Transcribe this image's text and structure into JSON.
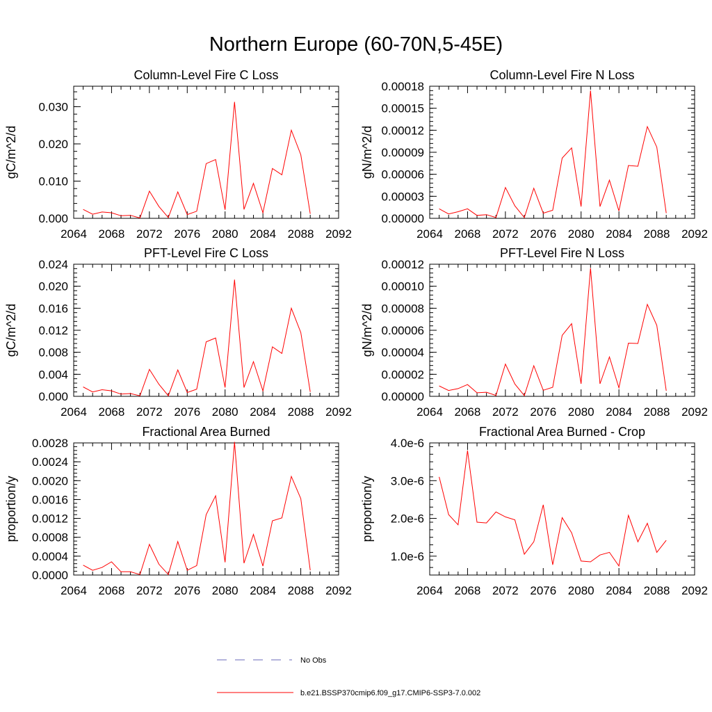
{
  "figure": {
    "title": "Northern Europe (60-70N,5-45E)"
  },
  "legend": {
    "entries": [
      {
        "label": "No Obs",
        "color": "#6a6ab8",
        "style": "dashed"
      },
      {
        "label": "b.e21.BSSP370cmip6.f09_g17.CMIP6-SSP3-7.0.002",
        "color": "#ff0000",
        "style": "solid"
      }
    ]
  },
  "chart_data": [
    {
      "type": "line",
      "title": "Column-Level Fire C Loss",
      "ylabel": "gC/m^2/d",
      "xlim": [
        2064,
        2092
      ],
      "ylim": [
        0,
        0.0355
      ],
      "x_ticks": [
        "2064",
        "2068",
        "2072",
        "2076",
        "2080",
        "2084",
        "2088",
        "2092"
      ],
      "y_ticks": [
        {
          "value": 0.0,
          "label": "0.000"
        },
        {
          "value": 0.01,
          "label": "0.010"
        },
        {
          "value": 0.02,
          "label": "0.020"
        },
        {
          "value": 0.03,
          "label": "0.030"
        }
      ],
      "series": [
        {
          "color": "#ff0000",
          "x": [
            2065,
            2066,
            2067,
            2068,
            2069,
            2070,
            2071,
            2072,
            2073,
            2074,
            2075,
            2076,
            2077,
            2078,
            2079,
            2080,
            2081,
            2082,
            2083,
            2084,
            2085,
            2086,
            2087,
            2088,
            2089
          ],
          "y": [
            0.0024,
            0.0011,
            0.0017,
            0.0015,
            0.0007,
            0.0008,
            0.0001,
            0.0073,
            0.0032,
            0.0002,
            0.0071,
            0.001,
            0.0019,
            0.0147,
            0.0158,
            0.0023,
            0.0313,
            0.0024,
            0.0094,
            0.0015,
            0.0134,
            0.0117,
            0.0237,
            0.0171,
            0.0012
          ]
        }
      ]
    },
    {
      "type": "line",
      "title": "Column-Level Fire N Loss",
      "ylabel": "gN/m^2/d",
      "xlim": [
        2064,
        2092
      ],
      "ylim": [
        0,
        0.00018
      ],
      "x_ticks": [
        "2064",
        "2068",
        "2072",
        "2076",
        "2080",
        "2084",
        "2088",
        "2092"
      ],
      "y_ticks": [
        {
          "value": 0.0,
          "label": "0.00000"
        },
        {
          "value": 3e-05,
          "label": "0.00003"
        },
        {
          "value": 6e-05,
          "label": "0.00006"
        },
        {
          "value": 9e-05,
          "label": "0.00009"
        },
        {
          "value": 0.00012,
          "label": "0.00012"
        },
        {
          "value": 0.00015,
          "label": "0.00015"
        },
        {
          "value": 0.00018,
          "label": "0.00018"
        }
      ],
      "series": [
        {
          "color": "#ff0000",
          "x": [
            2065,
            2066,
            2067,
            2068,
            2069,
            2070,
            2071,
            2072,
            2073,
            2074,
            2075,
            2076,
            2077,
            2078,
            2079,
            2080,
            2081,
            2082,
            2083,
            2084,
            2085,
            2086,
            2087,
            2088,
            2089
          ],
          "y": [
            1.3e-05,
            6e-06,
            9e-06,
            1.3e-05,
            4e-06,
            5e-06,
            1e-06,
            4.2e-05,
            1.7e-05,
            1e-06,
            4.1e-05,
            7e-06,
            1.1e-05,
            8.2e-05,
            9.6e-05,
            1.6e-05,
            0.000174,
            1.6e-05,
            5.2e-05,
            1e-05,
            7.2e-05,
            7.1e-05,
            0.000125,
            9.7e-05,
            7e-06
          ]
        }
      ]
    },
    {
      "type": "line",
      "title": "PFT-Level Fire C Loss",
      "ylabel": "gC/m^2/d",
      "xlim": [
        2064,
        2092
      ],
      "ylim": [
        0,
        0.024
      ],
      "x_ticks": [
        "2064",
        "2068",
        "2072",
        "2076",
        "2080",
        "2084",
        "2088",
        "2092"
      ],
      "y_ticks": [
        {
          "value": 0.0,
          "label": "0.000"
        },
        {
          "value": 0.004,
          "label": "0.004"
        },
        {
          "value": 0.008,
          "label": "0.008"
        },
        {
          "value": 0.012,
          "label": "0.012"
        },
        {
          "value": 0.016,
          "label": "0.016"
        },
        {
          "value": 0.02,
          "label": "0.020"
        },
        {
          "value": 0.024,
          "label": "0.024"
        }
      ],
      "series": [
        {
          "color": "#ff0000",
          "x": [
            2065,
            2066,
            2067,
            2068,
            2069,
            2070,
            2071,
            2072,
            2073,
            2074,
            2075,
            2076,
            2077,
            2078,
            2079,
            2080,
            2081,
            2082,
            2083,
            2084,
            2085,
            2086,
            2087,
            2088,
            2089
          ],
          "y": [
            0.0017,
            0.0008,
            0.0012,
            0.001,
            0.0004,
            0.0005,
            0.0001,
            0.0049,
            0.0022,
            0.0001,
            0.0048,
            0.0007,
            0.0013,
            0.0099,
            0.0106,
            0.0016,
            0.0212,
            0.0016,
            0.0063,
            0.001,
            0.009,
            0.0078,
            0.016,
            0.0116,
            0.0008
          ]
        }
      ]
    },
    {
      "type": "line",
      "title": "PFT-Level Fire N Loss",
      "ylabel": "gN/m^2/d",
      "xlim": [
        2064,
        2092
      ],
      "ylim": [
        0,
        0.00012
      ],
      "x_ticks": [
        "2064",
        "2068",
        "2072",
        "2076",
        "2080",
        "2084",
        "2088",
        "2092"
      ],
      "y_ticks": [
        {
          "value": 0.0,
          "label": "0.00000"
        },
        {
          "value": 2e-05,
          "label": "0.00002"
        },
        {
          "value": 4e-05,
          "label": "0.00004"
        },
        {
          "value": 6e-05,
          "label": "0.00006"
        },
        {
          "value": 8e-05,
          "label": "0.00008"
        },
        {
          "value": 0.0001,
          "label": "0.00010"
        },
        {
          "value": 0.00012,
          "label": "0.00012"
        }
      ],
      "series": [
        {
          "color": "#ff0000",
          "x": [
            2065,
            2066,
            2067,
            2068,
            2069,
            2070,
            2071,
            2072,
            2073,
            2074,
            2075,
            2076,
            2077,
            2078,
            2079,
            2080,
            2081,
            2082,
            2083,
            2084,
            2085,
            2086,
            2087,
            2088,
            2089
          ],
          "y": [
            9.5e-06,
            5.3e-06,
            7e-06,
            1.07e-05,
            3.2e-06,
            3.7e-06,
            8e-07,
            2.93e-05,
            1.12e-05,
            6e-07,
            2.78e-05,
            5.5e-06,
            8.2e-06,
            5.54e-05,
            6.6e-05,
            1.14e-05,
            0.0001165,
            1.14e-05,
            3.58e-05,
            7.7e-06,
            4.83e-05,
            4.8e-05,
            8.35e-05,
            6.45e-05,
            5e-06
          ]
        }
      ]
    },
    {
      "type": "line",
      "title": "Fractional Area Burned",
      "ylabel": "proportion/y",
      "xlim": [
        2064,
        2092
      ],
      "ylim": [
        0,
        0.0028
      ],
      "x_ticks": [
        "2064",
        "2068",
        "2072",
        "2076",
        "2080",
        "2084",
        "2088",
        "2092"
      ],
      "y_ticks": [
        {
          "value": 0.0,
          "label": "0.0000"
        },
        {
          "value": 0.0004,
          "label": "0.0004"
        },
        {
          "value": 0.0008,
          "label": "0.0008"
        },
        {
          "value": 0.0012,
          "label": "0.0012"
        },
        {
          "value": 0.0016,
          "label": "0.0016"
        },
        {
          "value": 0.002,
          "label": "0.0020"
        },
        {
          "value": 0.0024,
          "label": "0.0024"
        },
        {
          "value": 0.0028,
          "label": "0.0028"
        }
      ],
      "series": [
        {
          "color": "#ff0000",
          "x": [
            2065,
            2066,
            2067,
            2068,
            2069,
            2070,
            2071,
            2072,
            2073,
            2074,
            2075,
            2076,
            2077,
            2078,
            2079,
            2080,
            2081,
            2082,
            2083,
            2084,
            2085,
            2086,
            2087,
            2088,
            2089
          ],
          "y": [
            0.00021,
            0.0001,
            0.00016,
            0.00028,
            7e-05,
            7e-05,
            1e-05,
            0.00065,
            0.00023,
            1e-05,
            0.00071,
            0.0001,
            0.0002,
            0.00128,
            0.00168,
            0.00027,
            0.00282,
            0.00025,
            0.00086,
            0.00019,
            0.00115,
            0.00121,
            0.00209,
            0.00162,
            0.0001
          ]
        }
      ]
    },
    {
      "type": "line",
      "title": "Fractional Area Burned - Crop",
      "ylabel": "proportion/y",
      "xlim": [
        2064,
        2092
      ],
      "ylim": [
        5e-07,
        4e-06
      ],
      "x_ticks": [
        "2064",
        "2068",
        "2072",
        "2076",
        "2080",
        "2084",
        "2088",
        "2092"
      ],
      "y_ticks": [
        {
          "value": 1e-06,
          "label": "1.0e-6"
        },
        {
          "value": 2e-06,
          "label": "2.0e-6"
        },
        {
          "value": 3e-06,
          "label": "3.0e-6"
        },
        {
          "value": 4e-06,
          "label": "4.0e-6"
        }
      ],
      "series": [
        {
          "color": "#ff0000",
          "x": [
            2065,
            2066,
            2067,
            2068,
            2069,
            2070,
            2071,
            2072,
            2073,
            2074,
            2075,
            2076,
            2077,
            2078,
            2079,
            2080,
            2081,
            2082,
            2083,
            2084,
            2085,
            2086,
            2087,
            2088,
            2089
          ],
          "y": [
            3.1e-06,
            2.1e-06,
            1.83e-06,
            3.8e-06,
            1.9e-06,
            1.88e-06,
            2.17e-06,
            2.04e-06,
            1.96e-06,
            1.05e-06,
            1.38e-06,
            2.36e-06,
            7.7e-07,
            2.02e-06,
            1.62e-06,
            8.7e-07,
            8.5e-07,
            1.03e-06,
            1.1e-06,
            7.4e-07,
            2.08e-06,
            1.38e-06,
            1.87e-06,
            1.1e-06,
            1.42e-06
          ]
        }
      ]
    }
  ]
}
